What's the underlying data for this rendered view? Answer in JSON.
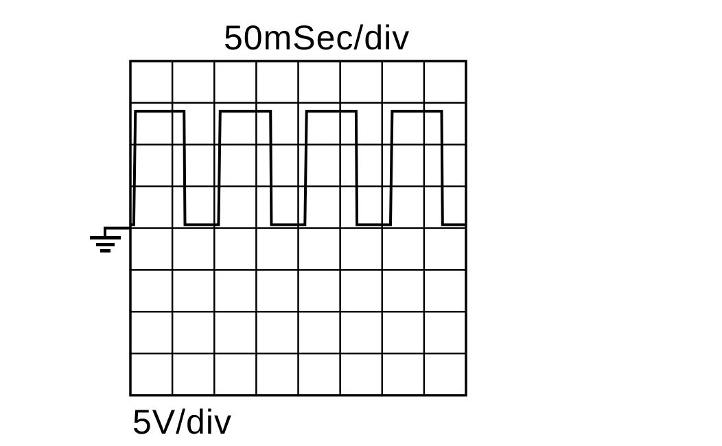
{
  "chart_data": {
    "type": "line",
    "title": "",
    "time_scale_label": "50mSec/div",
    "volt_scale_label": "5V/div",
    "x_units": "ms",
    "y_units": "V",
    "xlim": [
      0,
      400
    ],
    "ylim": [
      -20,
      20
    ],
    "divisions": {
      "x": 8,
      "y": 8
    },
    "grid": true,
    "ground_marker": true,
    "ground_level": 0,
    "series": [
      {
        "points": [
          [
            0,
            0
          ],
          [
            4,
            0
          ],
          [
            6,
            14
          ],
          [
            64,
            14
          ],
          [
            65,
            0
          ],
          [
            105,
            0
          ],
          [
            107,
            14
          ],
          [
            167,
            14
          ],
          [
            168,
            0
          ],
          [
            208,
            0
          ],
          [
            210,
            14
          ],
          [
            269,
            14
          ],
          [
            270,
            0
          ],
          [
            310,
            0
          ],
          [
            312,
            14
          ],
          [
            371,
            14
          ],
          [
            372,
            0
          ],
          [
            400,
            0
          ]
        ]
      }
    ],
    "colors": {
      "trace": "#000000",
      "grid": "#000000",
      "background": "#ffffff"
    }
  }
}
